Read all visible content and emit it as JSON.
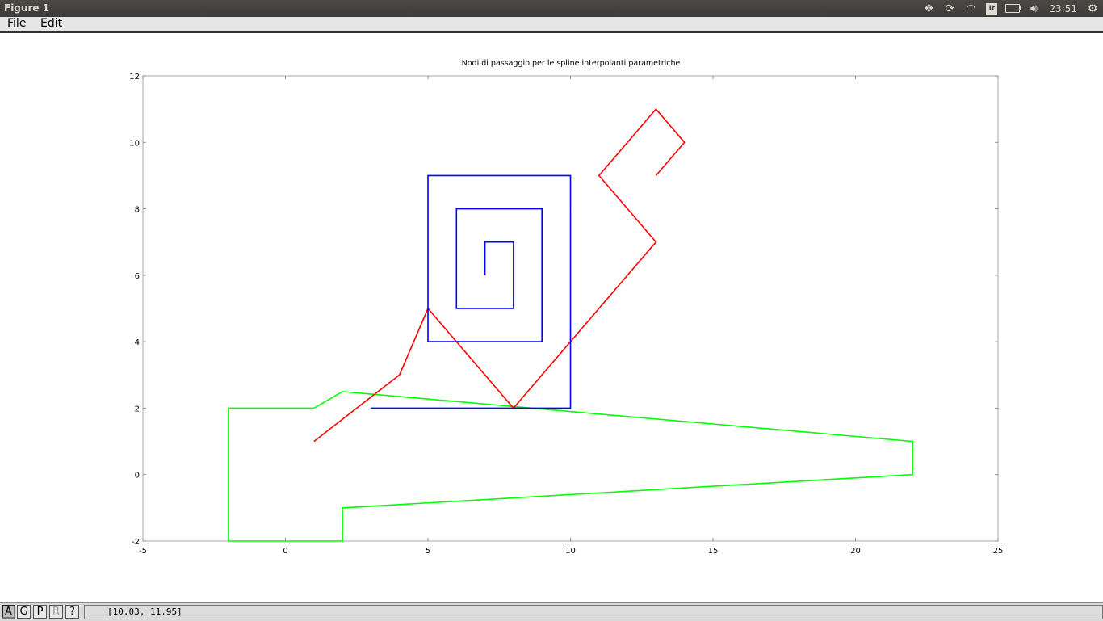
{
  "window": {
    "title": "Figure 1"
  },
  "system_tray": {
    "keyboard_layout": "It",
    "clock": "23:51",
    "icons": [
      "dropbox-icon",
      "update-icon",
      "wifi-icon",
      "keyboard-icon",
      "battery-icon",
      "volume-icon",
      "settings-gear-icon"
    ]
  },
  "menu": {
    "items": [
      {
        "label": "File"
      },
      {
        "label": "Edit"
      }
    ]
  },
  "toolbar": {
    "buttons": [
      {
        "label": "A"
      },
      {
        "label": "G"
      },
      {
        "label": "P"
      },
      {
        "label": "R"
      },
      {
        "label": "?"
      }
    ]
  },
  "status": {
    "coords": "[10.03, 11.95]"
  },
  "chart_data": {
    "type": "line",
    "title": "Nodi di passaggio per le spline interpolanti parametriche",
    "xlabel": "",
    "ylabel": "",
    "xlim": [
      -5,
      25
    ],
    "ylim": [
      -2,
      12
    ],
    "xticks": [
      -5,
      0,
      5,
      10,
      15,
      20,
      25
    ],
    "yticks": [
      -2,
      0,
      2,
      4,
      6,
      8,
      10,
      12
    ],
    "grid": false,
    "series": [
      {
        "color": "#00ff00",
        "points": [
          [
            1,
            2
          ],
          [
            2,
            2.5
          ],
          [
            22,
            1
          ],
          [
            22,
            0
          ],
          [
            2,
            -1
          ],
          [
            2,
            -2
          ],
          [
            -2,
            -2
          ],
          [
            -2,
            2
          ],
          [
            1,
            2
          ]
        ]
      },
      {
        "color": "#ff0000",
        "points": [
          [
            1,
            1
          ],
          [
            4,
            3
          ],
          [
            5,
            5
          ],
          [
            8,
            2
          ],
          [
            13,
            7
          ],
          [
            11,
            9
          ],
          [
            13,
            11
          ],
          [
            14,
            10
          ],
          [
            13,
            9
          ]
        ]
      },
      {
        "color": "#0000ff",
        "points": [
          [
            7,
            6
          ],
          [
            7,
            7
          ],
          [
            8,
            7
          ],
          [
            8,
            5
          ],
          [
            6,
            5
          ],
          [
            6,
            8
          ],
          [
            9,
            8
          ],
          [
            9,
            4
          ],
          [
            5,
            4
          ],
          [
            5,
            9
          ],
          [
            10,
            9
          ],
          [
            10,
            2
          ],
          [
            3,
            2
          ]
        ]
      }
    ]
  }
}
